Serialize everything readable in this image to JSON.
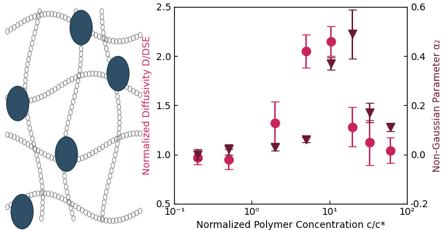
{
  "chart_data": {
    "type": "scatter",
    "x_label": "Normalized Polymer Concentration c/c*",
    "y_label": "Normalized Diffusivity D/DSE",
    "y2_label": "Non-Gaussian Parameter α₂",
    "log": "x",
    "xlim": [
      0.1,
      100
    ],
    "xticks": [
      {
        "value": 0.1,
        "label": "10⁻¹"
      },
      {
        "value": 1,
        "label": "10⁰"
      },
      {
        "value": 10,
        "label": "10¹"
      },
      {
        "value": 100,
        "label": "10²"
      }
    ],
    "ylim": [
      0.5,
      2.5
    ],
    "yticks": [
      {
        "value": 0.5,
        "label": "0.5"
      },
      {
        "value": 1.0,
        "label": "1.0"
      },
      {
        "value": 1.5,
        "label": "1.5"
      },
      {
        "value": 2.0,
        "label": "2.0"
      },
      {
        "value": 2.5,
        "label": "2.5"
      }
    ],
    "y2lim": [
      -0.2,
      0.6
    ],
    "y2ticks": [
      -0.2,
      {
        "value": 0.0,
        "label": "0.0"
      },
      0.2,
      0.4,
      0.6
    ],
    "series": [
      {
        "name": "Normalized Diffusivity D/DSE",
        "color": "#c8245c",
        "marker": "circle",
        "x": [
          0.2,
          0.5,
          2,
          5,
          10.5,
          20,
          33,
          62
        ],
        "values": [
          0.97,
          0.95,
          1.32,
          2.05,
          2.15,
          1.28,
          1.12,
          1.04
        ],
        "error": [
          0.07,
          0.1,
          0.22,
          0.17,
          0.15,
          0.2,
          0.23,
          0.13
        ]
      },
      {
        "name": "Non-Gaussian Parameter α₂",
        "color": "#6b1a32",
        "marker": "triangle_down",
        "axis": "y2",
        "x": [
          0.2,
          0.5,
          2,
          5,
          10.5,
          20,
          33,
          62
        ],
        "values": [
          0.0,
          0.02,
          0.03,
          0.06,
          0.37,
          0.49,
          0.17,
          0.11
        ],
        "error": [
          0.02,
          0.02,
          0.015,
          0.01,
          0.025,
          0.1,
          0.04,
          0.015
        ]
      }
    ]
  }
}
